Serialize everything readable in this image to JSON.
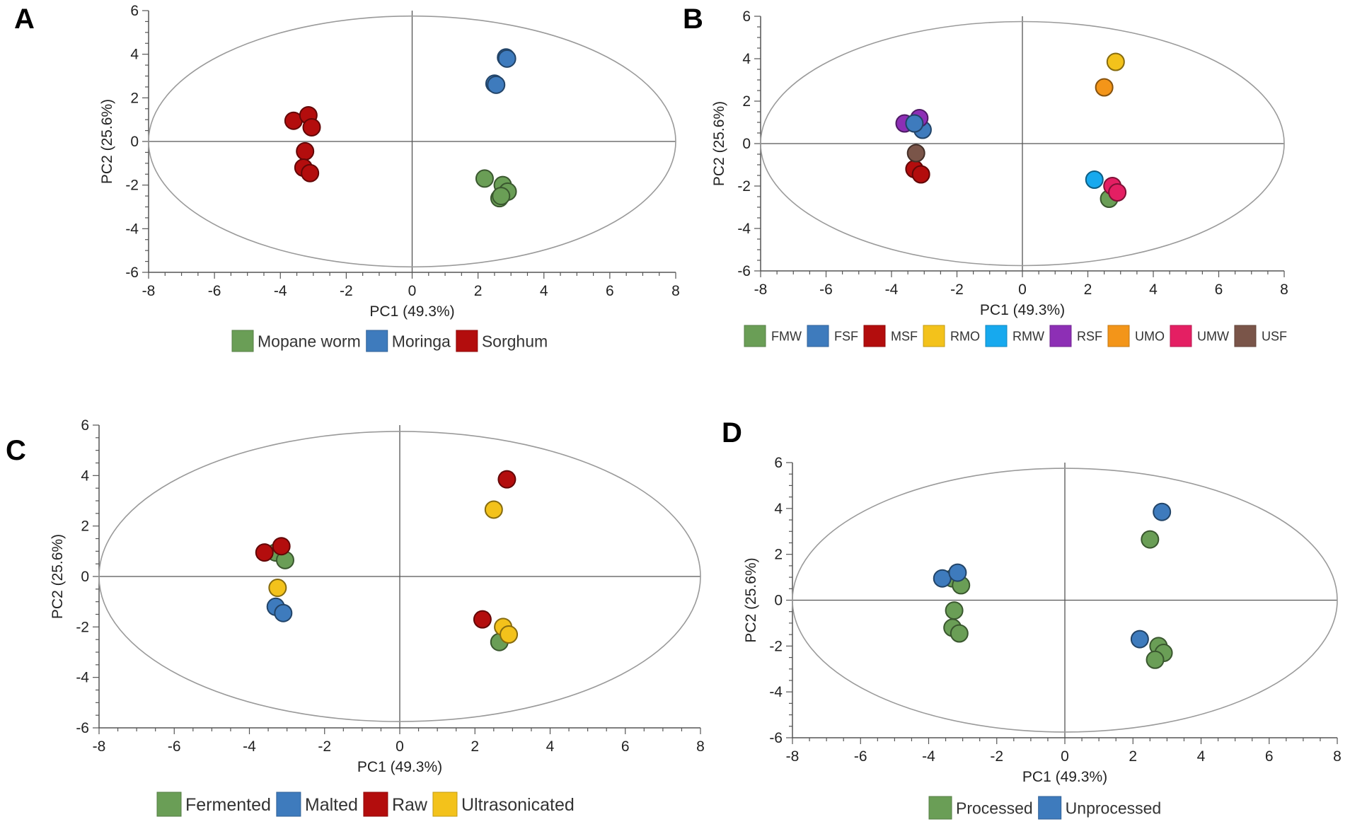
{
  "figure": {
    "palette": {
      "green": "#6a9e56",
      "blue": "#3e7bbd",
      "red": "#b30d0d",
      "yellow": "#f3c21b",
      "cyan": "#17a9ee",
      "purple": "#8d2fb5",
      "orange": "#f39519",
      "pink": "#e41f63",
      "brown": "#7a5549",
      "axis": "#555555",
      "ellipse": "#9a9a9a"
    }
  },
  "chart_data": [
    {
      "id": "A",
      "label": "A",
      "type": "scatter",
      "xlabel": "PC1 (49.3%)",
      "ylabel": "PC2 (25.6%)",
      "xlim": [
        -8,
        8
      ],
      "ylim": [
        -6,
        6
      ],
      "xticks": [
        -8,
        -6,
        -4,
        -2,
        0,
        2,
        4,
        6,
        8
      ],
      "yticks": [
        -6,
        -4,
        -2,
        0,
        2,
        4,
        6
      ],
      "ellipse": {
        "cx": 0,
        "cy": 0,
        "rx": 8,
        "ry": 5.75
      },
      "legend_position": "bottom",
      "series": [
        {
          "name": "Mopane worm",
          "color": "#6a9e56",
          "points": [
            [
              2.2,
              -1.7
            ],
            [
              2.75,
              -2.0
            ],
            [
              2.9,
              -2.3
            ],
            [
              2.65,
              -2.6
            ],
            [
              2.7,
              -2.5
            ]
          ]
        },
        {
          "name": "Moringa",
          "color": "#3e7bbd",
          "points": [
            [
              2.85,
              3.85
            ],
            [
              2.5,
              2.65
            ],
            [
              2.88,
              3.8
            ],
            [
              2.55,
              2.6
            ]
          ]
        },
        {
          "name": "Sorghum",
          "color": "#b30d0d",
          "points": [
            [
              -3.6,
              0.95
            ],
            [
              -3.15,
              1.2
            ],
            [
              -3.05,
              0.65
            ],
            [
              -3.25,
              -0.45
            ],
            [
              -3.3,
              -1.2
            ],
            [
              -3.1,
              -1.45
            ]
          ]
        }
      ]
    },
    {
      "id": "B",
      "label": "B",
      "type": "scatter",
      "xlabel": "PC1 (49.3%)",
      "ylabel": "PC2 (25.6%)",
      "xlim": [
        -8,
        8
      ],
      "ylim": [
        -6,
        6
      ],
      "xticks": [
        -8,
        -6,
        -4,
        -2,
        0,
        2,
        4,
        6,
        8
      ],
      "yticks": [
        -6,
        -4,
        -2,
        0,
        2,
        4,
        6
      ],
      "ellipse": {
        "cx": 0,
        "cy": 0,
        "rx": 8,
        "ry": 5.75
      },
      "legend_position": "bottom",
      "series": [
        {
          "name": "FMW",
          "color": "#6a9e56",
          "points": [
            [
              2.65,
              -2.6
            ]
          ]
        },
        {
          "name": "FSF",
          "color": "#3e7bbd",
          "points": [
            [
              -3.05,
              0.65
            ]
          ]
        },
        {
          "name": "MSF",
          "color": "#b30d0d",
          "points": [
            [
              -3.3,
              -1.2
            ],
            [
              -3.1,
              -1.45
            ]
          ]
        },
        {
          "name": "RMO",
          "color": "#f3c21b",
          "points": [
            [
              2.85,
              3.85
            ]
          ]
        },
        {
          "name": "RMW",
          "color": "#17a9ee",
          "points": [
            [
              2.2,
              -1.7
            ]
          ]
        },
        {
          "name": "RSF",
          "color": "#8d2fb5",
          "points": [
            [
              -3.6,
              0.95
            ],
            [
              -3.15,
              1.2
            ]
          ]
        },
        {
          "name": "UMO",
          "color": "#f39519",
          "points": [
            [
              2.5,
              2.65
            ]
          ]
        },
        {
          "name": "UMW",
          "color": "#e41f63",
          "points": [
            [
              2.75,
              -2.0
            ],
            [
              2.9,
              -2.3
            ]
          ]
        },
        {
          "name": "USF",
          "color": "#7a5549",
          "points": [
            [
              -3.25,
              -0.45
            ]
          ]
        },
        {
          "name": "FSF",
          "color": "#3e7bbd",
          "points": [
            [
              -3.3,
              0.95
            ]
          ],
          "legend": false
        }
      ]
    },
    {
      "id": "C",
      "label": "C",
      "type": "scatter",
      "xlabel": "PC1 (49.3%)",
      "ylabel": "PC2 (25.6%)",
      "xlim": [
        -8,
        8
      ],
      "ylim": [
        -6,
        6
      ],
      "xticks": [
        -8,
        -6,
        -4,
        -2,
        0,
        2,
        4,
        6,
        8
      ],
      "yticks": [
        -6,
        -4,
        -2,
        0,
        2,
        4,
        6
      ],
      "ellipse": {
        "cx": 0,
        "cy": 0,
        "rx": 8,
        "ry": 5.75
      },
      "legend_position": "bottom",
      "series": [
        {
          "name": "Fermented",
          "color": "#6a9e56",
          "points": [
            [
              -3.3,
              0.95
            ],
            [
              -3.05,
              0.65
            ],
            [
              2.65,
              -2.6
            ]
          ]
        },
        {
          "name": "Malted",
          "color": "#3e7bbd",
          "points": [
            [
              -3.3,
              -1.2
            ],
            [
              -3.1,
              -1.45
            ]
          ]
        },
        {
          "name": "Raw",
          "color": "#b30d0d",
          "points": [
            [
              -3.6,
              0.95
            ],
            [
              -3.15,
              1.2
            ],
            [
              2.85,
              3.85
            ],
            [
              2.2,
              -1.7
            ]
          ]
        },
        {
          "name": "Ultrasonicated",
          "color": "#f3c21b",
          "points": [
            [
              -3.25,
              -0.45
            ],
            [
              2.5,
              2.65
            ],
            [
              2.75,
              -2.0
            ],
            [
              2.9,
              -2.3
            ]
          ]
        }
      ]
    },
    {
      "id": "D",
      "label": "D",
      "type": "scatter",
      "xlabel": "PC1 (49.3%)",
      "ylabel": "PC2 (25.6%)",
      "xlim": [
        -8,
        8
      ],
      "ylim": [
        -6,
        6
      ],
      "xticks": [
        -8,
        -6,
        -4,
        -2,
        0,
        2,
        4,
        6,
        8
      ],
      "yticks": [
        -6,
        -4,
        -2,
        0,
        2,
        4,
        6
      ],
      "ellipse": {
        "cx": 0,
        "cy": 0,
        "rx": 8,
        "ry": 5.75
      },
      "legend_position": "bottom",
      "series": [
        {
          "name": "Processed",
          "color": "#6a9e56",
          "points": [
            [
              -3.3,
              0.95
            ],
            [
              -3.05,
              0.65
            ],
            [
              -3.25,
              -0.45
            ],
            [
              -3.3,
              -1.2
            ],
            [
              -3.1,
              -1.45
            ],
            [
              2.5,
              2.65
            ],
            [
              2.75,
              -2.0
            ],
            [
              2.9,
              -2.3
            ],
            [
              2.65,
              -2.6
            ]
          ]
        },
        {
          "name": "Unprocessed",
          "color": "#3e7bbd",
          "points": [
            [
              -3.6,
              0.95
            ],
            [
              -3.15,
              1.2
            ],
            [
              2.85,
              3.85
            ],
            [
              2.2,
              -1.7
            ]
          ]
        }
      ]
    }
  ]
}
